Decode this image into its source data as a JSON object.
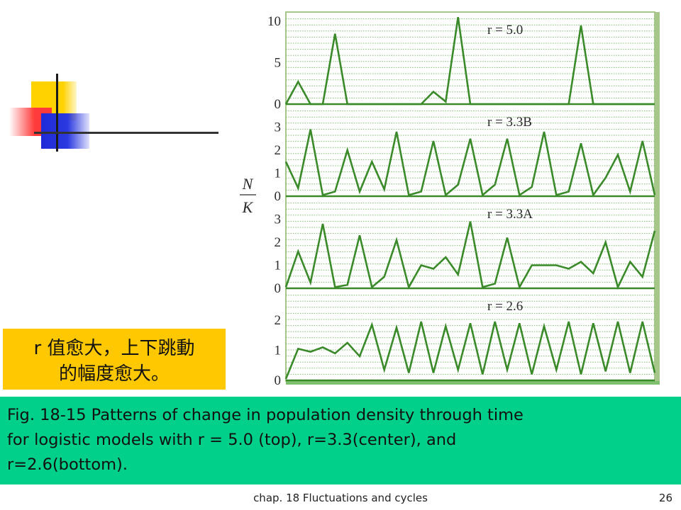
{
  "chart_data": {
    "type": "line",
    "ylabel": [
      "N",
      "K"
    ],
    "panels": [
      {
        "label": "r = 5.0",
        "ylim": [
          0,
          10.5
        ],
        "yticks": [
          0,
          5,
          10
        ],
        "values": [
          0,
          2.7,
          0,
          0,
          8.5,
          0,
          0,
          0,
          0,
          0,
          0,
          0,
          1.5,
          0.3,
          11,
          0,
          0,
          0,
          0,
          0,
          0,
          0,
          0,
          0,
          9.5,
          0,
          0,
          0,
          0,
          0,
          0
        ]
      },
      {
        "label": "r = 3.3B",
        "ylim": [
          0,
          3.4
        ],
        "yticks": [
          0,
          1,
          2,
          3
        ],
        "values": [
          1.5,
          0.35,
          2.9,
          0.05,
          0.2,
          2.0,
          0.2,
          1.5,
          0.3,
          2.8,
          0.05,
          0.2,
          2.4,
          0.05,
          0.5,
          2.5,
          0.05,
          0.5,
          2.5,
          0.05,
          0.4,
          2.8,
          0.05,
          0.2,
          2.3,
          0.05,
          0.8,
          1.8,
          0.2,
          2.4,
          0.05
        ]
      },
      {
        "label": "r = 3.3A",
        "ylim": [
          0,
          3.4
        ],
        "yticks": [
          0,
          1,
          2,
          3
        ],
        "values": [
          0.05,
          1.6,
          0.25,
          2.8,
          0.05,
          0.15,
          2.3,
          0.05,
          0.5,
          2.1,
          0.05,
          1.0,
          0.85,
          1.35,
          0.6,
          2.9,
          0.05,
          0.2,
          2.2,
          0.05,
          1.0,
          1.0,
          1.0,
          0.85,
          1.15,
          0.65,
          2.0,
          0.05,
          1.15,
          0.5,
          2.5
        ]
      },
      {
        "label": "r = 2.6",
        "ylim": [
          0,
          2.6
        ],
        "yticks": [
          0,
          1,
          2
        ],
        "values": [
          0.05,
          1.05,
          0.95,
          1.1,
          0.9,
          1.25,
          0.8,
          1.85,
          0.35,
          1.75,
          0.25,
          1.95,
          0.25,
          1.8,
          0.35,
          1.9,
          0.2,
          1.95,
          0.35,
          1.9,
          0.2,
          1.8,
          0.35,
          1.95,
          0.2,
          1.9,
          0.3,
          1.95,
          0.25,
          1.95,
          0.25
        ]
      }
    ]
  },
  "note": {
    "line1": "r 值愈大，上下跳動",
    "line2": "的幅度愈大。"
  },
  "caption": {
    "line1": "Fig. 18-15 Patterns of change in population density through time",
    "line2": "for logistic models with r = 5.0 (top), r=3.3(center), and",
    "line3": "r=2.6(bottom)."
  },
  "footer": {
    "title": "chap. 18 Fluctuations and cycles",
    "page": "26"
  },
  "colors": {
    "line": "#3a8a2a",
    "frame": "#a7c78a",
    "grid": "#7fbf70",
    "note_bg": "#ffc800",
    "caption_bg": "#00d08a"
  }
}
